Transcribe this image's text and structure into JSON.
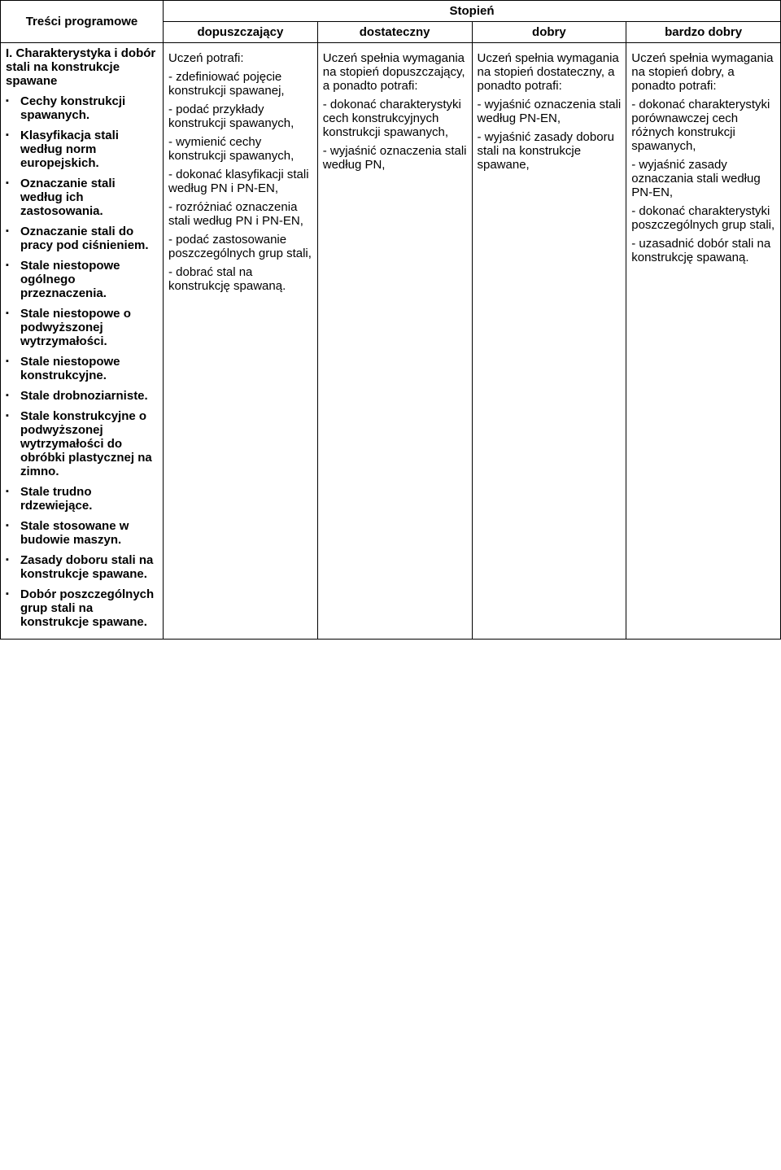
{
  "header": {
    "row1_left": "Treści programowe",
    "row1_span": "Stopień",
    "cols": [
      "dopuszczający",
      "dostateczny",
      "dobry",
      "bardzo dobry"
    ]
  },
  "left": {
    "section": "I. Charakterystyka i dobór stali na konstrukcje spawane",
    "items": [
      "Cechy konstrukcji spawanych.",
      "Klasyfikacja stali według norm europejskich.",
      "Oznaczanie stali według ich zastosowania.",
      "Oznaczanie stali do pracy pod ciśnieniem.",
      "Stale niestopowe ogólnego przeznaczenia.",
      "Stale niestopowe o podwyższonej wytrzymałości.",
      "Stale niestopowe konstrukcyjne.",
      "Stale drobnoziarniste.",
      "Stale konstrukcyjne o podwyższonej wytrzymałości do obróbki plastycznej na zimno.",
      "Stale trudno rdzewiejące.",
      "Stale stosowane w budowie maszyn.",
      "Zasady doboru stali na konstrukcje spawane.",
      "Dobór poszczególnych grup stali na konstrukcje spawane."
    ]
  },
  "c1": {
    "lead": "Uczeń potrafi:",
    "items": [
      "- zdefiniować pojęcie konstrukcji spawanej,",
      "- podać przykłady konstrukcji spawanych,",
      "- wymienić cechy konstrukcji spawanych,",
      "- dokonać klasyfikacji stali według PN i PN-EN,",
      "- rozróżniać oznaczenia stali według PN i PN-EN,",
      "- podać zastosowanie poszczególnych grup stali,",
      "- dobrać stal na konstrukcję spawaną."
    ]
  },
  "c2": {
    "lead": "Uczeń spełnia wymagania na stopień dopuszczający, a ponadto potrafi:",
    "items": [
      "- dokonać charakterystyki cech konstrukcyjnych konstrukcji spawanych,",
      "- wyjaśnić oznaczenia stali według PN,"
    ]
  },
  "c3": {
    "lead": "Uczeń spełnia wymagania na stopień dostateczny, a ponadto potrafi:",
    "items": [
      "-   wyjaśnić oznaczenia stali według PN-EN,",
      "-   wyjaśnić zasady doboru stali na konstrukcje spawane,"
    ]
  },
  "c4": {
    "lead": "Uczeń spełnia wymagania na stopień dobry, a ponadto potrafi:",
    "items": [
      "-   dokonać charakterystyki porównawczej cech różnych konstrukcji spawanych,",
      "-   wyjaśnić zasady oznaczania stali według PN-EN,",
      "-   dokonać charakterystyki poszczególnych grup stali,",
      "-   uzasadnić dobór stali na konstrukcję spawaną."
    ]
  }
}
